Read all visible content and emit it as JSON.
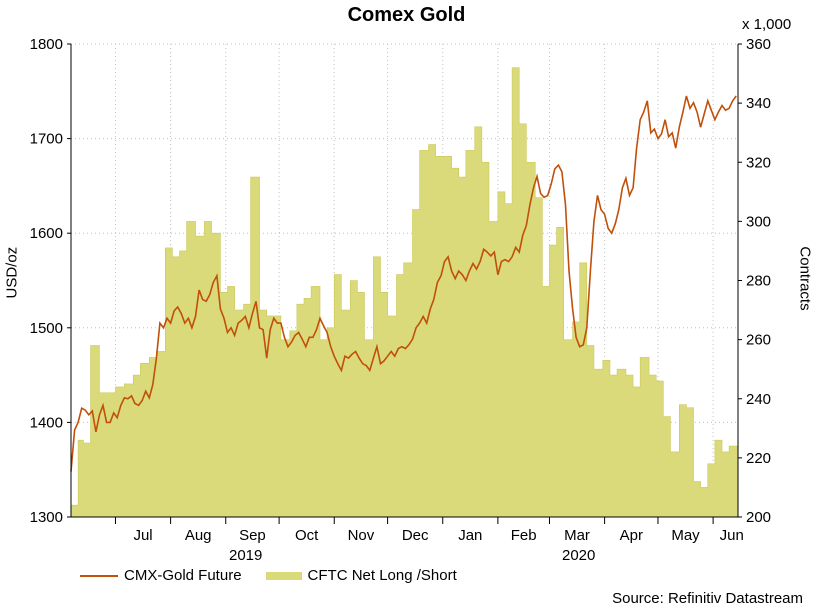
{
  "chart_data": {
    "type": "line+area",
    "title": "Comex Gold",
    "unit_label": "x 1,000",
    "ylabel_left": "USD/oz",
    "ylabel_right": "Contracts",
    "ylim_left": [
      1300,
      1800
    ],
    "ylim_right": [
      200,
      360
    ],
    "yticks_left": [
      "1300",
      "1400",
      "1500",
      "1600",
      "1700",
      "1800"
    ],
    "yticks_right": [
      "200",
      "220",
      "240",
      "260",
      "280",
      "300",
      "320",
      "340",
      "360"
    ],
    "months": [
      "Jul",
      "Aug",
      "Sep",
      "Oct",
      "Nov",
      "Dec",
      "Jan",
      "Feb",
      "Mar",
      "Apr",
      "May",
      "Jun"
    ],
    "years": [
      "2019",
      "2020"
    ],
    "legend": [
      "CMX-Gold Future",
      "CFTC Net Long /Short"
    ],
    "source": "Source: Refinitiv Datastream",
    "colors": {
      "gold": "#c0500a",
      "cftc": "#dada7a",
      "cftc_edge": "#c9c95a",
      "grid": "#c0c0c0"
    },
    "x_start_day": 0,
    "x_end_day": 375,
    "month_starts": [
      25,
      56,
      87,
      117,
      148,
      178,
      209,
      240,
      269,
      300,
      330,
      361
    ],
    "series": [
      {
        "name": "CMX-Gold Future",
        "axis": "left",
        "points": [
          [
            0,
            1348
          ],
          [
            2,
            1392
          ],
          [
            4,
            1400
          ],
          [
            6,
            1415
          ],
          [
            8,
            1413
          ],
          [
            10,
            1408
          ],
          [
            12,
            1412
          ],
          [
            14,
            1390
          ],
          [
            16,
            1408
          ],
          [
            18,
            1418
          ],
          [
            20,
            1400
          ],
          [
            22,
            1400
          ],
          [
            24,
            1410
          ],
          [
            26,
            1405
          ],
          [
            28,
            1418
          ],
          [
            30,
            1426
          ],
          [
            32,
            1425
          ],
          [
            34,
            1428
          ],
          [
            36,
            1420
          ],
          [
            38,
            1418
          ],
          [
            40,
            1423
          ],
          [
            42,
            1433
          ],
          [
            44,
            1426
          ],
          [
            46,
            1440
          ],
          [
            48,
            1468
          ],
          [
            50,
            1505
          ],
          [
            52,
            1500
          ],
          [
            54,
            1510
          ],
          [
            56,
            1505
          ],
          [
            58,
            1518
          ],
          [
            60,
            1522
          ],
          [
            62,
            1515
          ],
          [
            64,
            1505
          ],
          [
            66,
            1510
          ],
          [
            68,
            1500
          ],
          [
            70,
            1512
          ],
          [
            72,
            1540
          ],
          [
            74,
            1530
          ],
          [
            76,
            1528
          ],
          [
            78,
            1535
          ],
          [
            80,
            1548
          ],
          [
            82,
            1555
          ],
          [
            84,
            1520
          ],
          [
            86,
            1510
          ],
          [
            88,
            1495
          ],
          [
            90,
            1500
          ],
          [
            92,
            1492
          ],
          [
            94,
            1505
          ],
          [
            96,
            1508
          ],
          [
            98,
            1512
          ],
          [
            100,
            1500
          ],
          [
            102,
            1515
          ],
          [
            104,
            1528
          ],
          [
            106,
            1500
          ],
          [
            108,
            1498
          ],
          [
            110,
            1468
          ],
          [
            112,
            1498
          ],
          [
            114,
            1510
          ],
          [
            116,
            1505
          ],
          [
            118,
            1505
          ],
          [
            120,
            1490
          ],
          [
            122,
            1480
          ],
          [
            124,
            1485
          ],
          [
            126,
            1492
          ],
          [
            128,
            1495
          ],
          [
            130,
            1488
          ],
          [
            132,
            1480
          ],
          [
            134,
            1490
          ],
          [
            136,
            1490
          ],
          [
            138,
            1498
          ],
          [
            140,
            1510
          ],
          [
            142,
            1502
          ],
          [
            144,
            1495
          ],
          [
            146,
            1480
          ],
          [
            148,
            1470
          ],
          [
            150,
            1462
          ],
          [
            152,
            1455
          ],
          [
            154,
            1470
          ],
          [
            156,
            1468
          ],
          [
            158,
            1472
          ],
          [
            160,
            1475
          ],
          [
            162,
            1468
          ],
          [
            164,
            1462
          ],
          [
            166,
            1460
          ],
          [
            168,
            1455
          ],
          [
            170,
            1468
          ],
          [
            172,
            1480
          ],
          [
            174,
            1462
          ],
          [
            176,
            1465
          ],
          [
            178,
            1470
          ],
          [
            180,
            1475
          ],
          [
            182,
            1470
          ],
          [
            184,
            1478
          ],
          [
            186,
            1480
          ],
          [
            188,
            1478
          ],
          [
            190,
            1482
          ],
          [
            192,
            1488
          ],
          [
            194,
            1500
          ],
          [
            196,
            1505
          ],
          [
            198,
            1512
          ],
          [
            200,
            1505
          ],
          [
            202,
            1520
          ],
          [
            204,
            1530
          ],
          [
            206,
            1548
          ],
          [
            208,
            1555
          ],
          [
            210,
            1570
          ],
          [
            212,
            1575
          ],
          [
            214,
            1560
          ],
          [
            216,
            1552
          ],
          [
            218,
            1560
          ],
          [
            220,
            1556
          ],
          [
            222,
            1550
          ],
          [
            224,
            1560
          ],
          [
            226,
            1568
          ],
          [
            228,
            1562
          ],
          [
            230,
            1570
          ],
          [
            232,
            1583
          ],
          [
            234,
            1580
          ],
          [
            236,
            1576
          ],
          [
            238,
            1580
          ],
          [
            240,
            1556
          ],
          [
            242,
            1570
          ],
          [
            244,
            1572
          ],
          [
            246,
            1570
          ],
          [
            248,
            1575
          ],
          [
            250,
            1585
          ],
          [
            252,
            1580
          ],
          [
            254,
            1598
          ],
          [
            256,
            1608
          ],
          [
            258,
            1630
          ],
          [
            260,
            1648
          ],
          [
            262,
            1660
          ],
          [
            264,
            1642
          ],
          [
            266,
            1638
          ],
          [
            268,
            1640
          ],
          [
            270,
            1652
          ],
          [
            272,
            1668
          ],
          [
            274,
            1672
          ],
          [
            276,
            1665
          ],
          [
            278,
            1630
          ],
          [
            280,
            1560
          ],
          [
            282,
            1520
          ],
          [
            284,
            1490
          ],
          [
            286,
            1480
          ],
          [
            288,
            1482
          ],
          [
            290,
            1500
          ],
          [
            292,
            1560
          ],
          [
            294,
            1612
          ],
          [
            296,
            1640
          ],
          [
            298,
            1625
          ],
          [
            300,
            1620
          ],
          [
            302,
            1605
          ],
          [
            304,
            1600
          ],
          [
            306,
            1610
          ],
          [
            308,
            1625
          ],
          [
            310,
            1648
          ],
          [
            312,
            1658
          ],
          [
            314,
            1640
          ],
          [
            316,
            1648
          ],
          [
            318,
            1690
          ],
          [
            320,
            1720
          ],
          [
            322,
            1728
          ],
          [
            324,
            1740
          ],
          [
            326,
            1706
          ],
          [
            328,
            1710
          ],
          [
            330,
            1700
          ],
          [
            332,
            1705
          ],
          [
            334,
            1720
          ],
          [
            336,
            1702
          ],
          [
            338,
            1706
          ],
          [
            340,
            1690
          ],
          [
            342,
            1712
          ],
          [
            344,
            1728
          ],
          [
            346,
            1745
          ],
          [
            348,
            1732
          ],
          [
            350,
            1738
          ],
          [
            352,
            1728
          ],
          [
            354,
            1712
          ],
          [
            356,
            1726
          ],
          [
            358,
            1740
          ],
          [
            360,
            1730
          ],
          [
            362,
            1720
          ],
          [
            364,
            1728
          ],
          [
            366,
            1735
          ],
          [
            368,
            1730
          ],
          [
            370,
            1732
          ],
          [
            372,
            1740
          ],
          [
            374,
            1745
          ]
        ]
      },
      {
        "name": "CFTC Net Long /Short",
        "axis": "right",
        "bars": [
          [
            0,
            204
          ],
          [
            4,
            226
          ],
          [
            7,
            225
          ],
          [
            11,
            258
          ],
          [
            16,
            242
          ],
          [
            21,
            242
          ],
          [
            25,
            244
          ],
          [
            30,
            245
          ],
          [
            35,
            248
          ],
          [
            39,
            252
          ],
          [
            44,
            254
          ],
          [
            48,
            256
          ],
          [
            53,
            291
          ],
          [
            57,
            288
          ],
          [
            61,
            290
          ],
          [
            65,
            300
          ],
          [
            70,
            295
          ],
          [
            75,
            300
          ],
          [
            79,
            296
          ],
          [
            84,
            276
          ],
          [
            88,
            278
          ],
          [
            92,
            270
          ],
          [
            97,
            272
          ],
          [
            101,
            315
          ],
          [
            106,
            270
          ],
          [
            110,
            268
          ],
          [
            114,
            268
          ],
          [
            118,
            260
          ],
          [
            123,
            263
          ],
          [
            127,
            272
          ],
          [
            131,
            274
          ],
          [
            135,
            278
          ],
          [
            140,
            260
          ],
          [
            144,
            264
          ],
          [
            148,
            282
          ],
          [
            152,
            270
          ],
          [
            157,
            280
          ],
          [
            161,
            276
          ],
          [
            165,
            260
          ],
          [
            170,
            288
          ],
          [
            174,
            276
          ],
          [
            178,
            268
          ],
          [
            183,
            282
          ],
          [
            187,
            286
          ],
          [
            192,
            304
          ],
          [
            196,
            324
          ],
          [
            201,
            326
          ],
          [
            205,
            322
          ],
          [
            209,
            322
          ],
          [
            214,
            318
          ],
          [
            218,
            315
          ],
          [
            222,
            324
          ],
          [
            227,
            332
          ],
          [
            231,
            320
          ],
          [
            235,
            300
          ],
          [
            240,
            310
          ],
          [
            244,
            306
          ],
          [
            248,
            352
          ],
          [
            252,
            333
          ],
          [
            256,
            320
          ],
          [
            261,
            308
          ],
          [
            265,
            278
          ],
          [
            269,
            292
          ],
          [
            273,
            298
          ],
          [
            277,
            260
          ],
          [
            282,
            266
          ],
          [
            286,
            286
          ],
          [
            290,
            258
          ],
          [
            294,
            250
          ],
          [
            299,
            253
          ],
          [
            303,
            248
          ],
          [
            307,
            250
          ],
          [
            312,
            248
          ],
          [
            316,
            244
          ],
          [
            320,
            254
          ],
          [
            325,
            248
          ],
          [
            329,
            246
          ],
          [
            333,
            234
          ],
          [
            337,
            222
          ],
          [
            342,
            238
          ],
          [
            346,
            237
          ],
          [
            350,
            212
          ],
          [
            354,
            210
          ],
          [
            358,
            218
          ],
          [
            362,
            226
          ],
          [
            366,
            222
          ],
          [
            370,
            224
          ]
        ]
      }
    ]
  }
}
